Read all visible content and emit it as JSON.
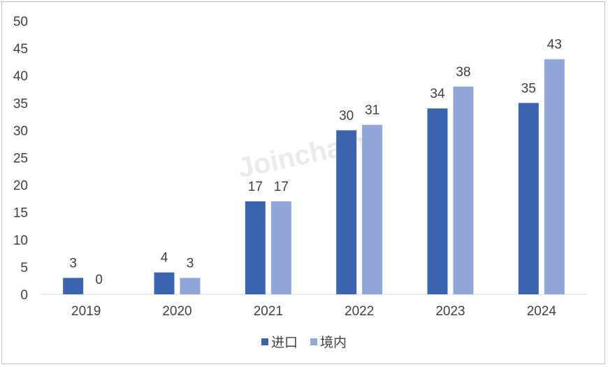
{
  "watermark": "Joinchain",
  "chart_data": {
    "type": "bar",
    "categories": [
      "2019",
      "2020",
      "2021",
      "2022",
      "2023",
      "2024"
    ],
    "series": [
      {
        "name": "进口",
        "values": [
          3,
          4,
          17,
          30,
          34,
          35
        ],
        "color": "#3c64ae"
      },
      {
        "name": "境内",
        "values": [
          0,
          3,
          17,
          31,
          38,
          43
        ],
        "color": "#8fa6d6"
      }
    ],
    "ylim": [
      0,
      50
    ],
    "yticks": [
      "0",
      "5",
      "10",
      "15",
      "20",
      "25",
      "30",
      "35",
      "40",
      "45",
      "50"
    ],
    "grid": false,
    "legend": "bottom-center",
    "data_labels": true
  }
}
